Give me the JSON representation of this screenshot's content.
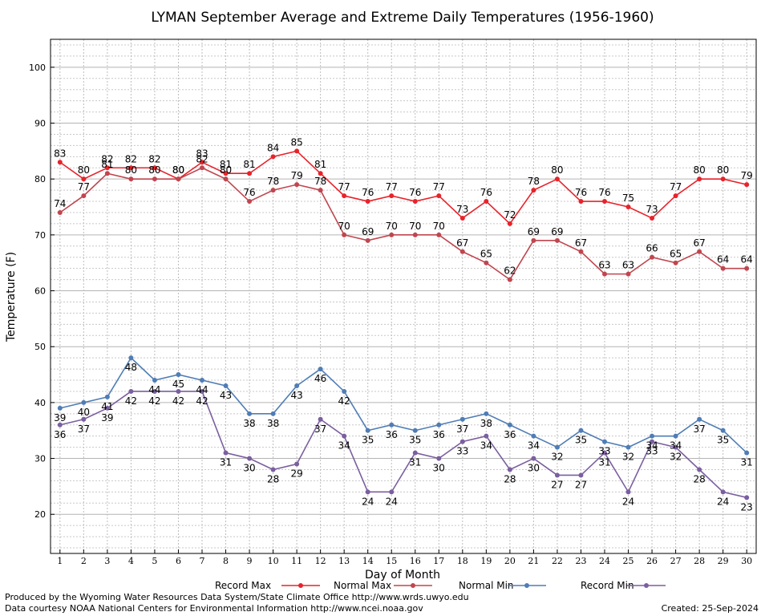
{
  "chart_data": {
    "type": "line",
    "title": "LYMAN September Average and Extreme Daily Temperatures (1956-1960)",
    "xlabel": "Day of Month",
    "ylabel": "Temperature (F)",
    "x": [
      1,
      2,
      3,
      4,
      5,
      6,
      7,
      8,
      9,
      10,
      11,
      12,
      13,
      14,
      15,
      16,
      17,
      18,
      19,
      20,
      21,
      22,
      23,
      24,
      25,
      26,
      27,
      28,
      29,
      30
    ],
    "xlim": [
      0.6,
      30.4
    ],
    "ylim": [
      13,
      105
    ],
    "y_ticks": [
      20,
      30,
      40,
      50,
      60,
      70,
      80,
      90,
      100
    ],
    "grid": true,
    "legend_position": "bottom",
    "series": [
      {
        "name": "Record Max",
        "color": "#e8232a",
        "values": [
          83,
          80,
          82,
          82,
          82,
          80,
          83,
          81,
          81,
          84,
          85,
          81,
          77,
          76,
          77,
          76,
          77,
          73,
          76,
          72,
          78,
          80,
          76,
          76,
          75,
          73,
          77,
          80,
          80,
          79
        ]
      },
      {
        "name": "Normal Max",
        "color": "#c0464f",
        "values": [
          74,
          77,
          81,
          80,
          80,
          80,
          82,
          80,
          76,
          78,
          79,
          78,
          70,
          69,
          70,
          70,
          70,
          67,
          65,
          62,
          69,
          69,
          67,
          63,
          63,
          66,
          65,
          67,
          64,
          64
        ]
      },
      {
        "name": "Normal Min",
        "color": "#4f7db5",
        "values": [
          39,
          40,
          41,
          48,
          44,
          45,
          44,
          43,
          38,
          38,
          43,
          46,
          42,
          35,
          36,
          35,
          36,
          37,
          38,
          36,
          34,
          32,
          35,
          33,
          32,
          34,
          34,
          37,
          35,
          31
        ]
      },
      {
        "name": "Record Min",
        "color": "#7b5fa0",
        "values": [
          36,
          37,
          39,
          42,
          42,
          42,
          42,
          31,
          30,
          28,
          29,
          37,
          34,
          24,
          24,
          31,
          30,
          33,
          34,
          28,
          30,
          27,
          27,
          31,
          24,
          33,
          32,
          28,
          24,
          23
        ]
      }
    ]
  },
  "footer": {
    "produced_by": "Produced by the Wyoming Water Resources Data System/State Climate Office http://www.wrds.uwyo.edu",
    "courtesy": "Data courtesy NOAA National Centers for Environmental Information http://www.ncei.noaa.gov",
    "created": "Created:  25-Sep-2024"
  }
}
